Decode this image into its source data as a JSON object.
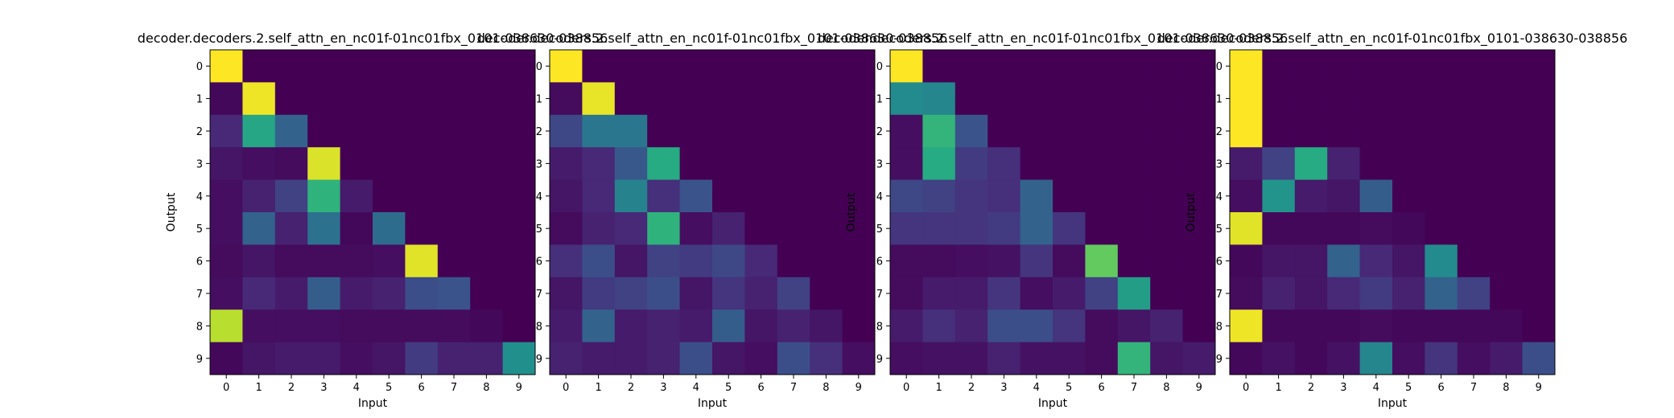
{
  "chart_data": [
    {
      "type": "heatmap",
      "title": "decoder.decoders.2.self_attn_en_nc01f-01nc01fbx_0101-038630-038856",
      "xlabel": "Input",
      "ylabel": "Output",
      "x_ticks": [
        "0",
        "1",
        "2",
        "3",
        "4",
        "5",
        "6",
        "7",
        "8",
        "9"
      ],
      "y_ticks": [
        "0",
        "1",
        "2",
        "3",
        "4",
        "5",
        "6",
        "7",
        "8",
        "9"
      ],
      "colormap": "viridis",
      "values": [
        [
          1.0,
          0.0,
          0.0,
          0.0,
          0.0,
          0.0,
          0.0,
          0.0,
          0.0,
          0.0
        ],
        [
          0.02,
          0.98,
          0.0,
          0.0,
          0.0,
          0.0,
          0.0,
          0.0,
          0.0,
          0.0
        ],
        [
          0.12,
          0.6,
          0.32,
          0.0,
          0.0,
          0.0,
          0.0,
          0.0,
          0.0,
          0.0
        ],
        [
          0.06,
          0.04,
          0.03,
          0.95,
          0.0,
          0.0,
          0.0,
          0.0,
          0.0,
          0.0
        ],
        [
          0.04,
          0.1,
          0.2,
          0.65,
          0.08,
          0.0,
          0.0,
          0.0,
          0.0,
          0.0
        ],
        [
          0.04,
          0.32,
          0.1,
          0.38,
          0.02,
          0.36,
          0.0,
          0.0,
          0.0,
          0.0
        ],
        [
          0.03,
          0.06,
          0.03,
          0.03,
          0.03,
          0.04,
          0.96,
          0.0,
          0.0,
          0.0
        ],
        [
          0.04,
          0.12,
          0.08,
          0.3,
          0.08,
          0.1,
          0.24,
          0.26,
          0.0,
          0.0
        ],
        [
          0.9,
          0.04,
          0.04,
          0.04,
          0.03,
          0.03,
          0.03,
          0.03,
          0.02,
          0.0
        ],
        [
          0.02,
          0.06,
          0.08,
          0.08,
          0.04,
          0.06,
          0.18,
          0.1,
          0.1,
          0.5
        ]
      ]
    },
    {
      "type": "heatmap",
      "title": "decoder.decoders.2.self_attn_en_nc01f-01nc01fbx_0101-038630-038856",
      "xlabel": "Input",
      "ylabel": "",
      "x_ticks": [
        "0",
        "1",
        "2",
        "3",
        "4",
        "5",
        "6",
        "7",
        "8",
        "9"
      ],
      "y_ticks": [
        "0",
        "1",
        "2",
        "3",
        "4",
        "5",
        "6",
        "7",
        "8",
        "9"
      ],
      "colormap": "viridis",
      "values": [
        [
          1.0,
          0.0,
          0.0,
          0.0,
          0.0,
          0.0,
          0.0,
          0.0,
          0.0,
          0.0
        ],
        [
          0.03,
          0.97,
          0.0,
          0.0,
          0.0,
          0.0,
          0.0,
          0.0,
          0.0,
          0.0
        ],
        [
          0.22,
          0.4,
          0.4,
          0.0,
          0.0,
          0.0,
          0.0,
          0.0,
          0.0,
          0.0
        ],
        [
          0.08,
          0.12,
          0.28,
          0.62,
          0.0,
          0.0,
          0.0,
          0.0,
          0.0,
          0.0
        ],
        [
          0.06,
          0.12,
          0.45,
          0.14,
          0.26,
          0.0,
          0.0,
          0.0,
          0.0,
          0.0
        ],
        [
          0.03,
          0.1,
          0.12,
          0.65,
          0.04,
          0.1,
          0.0,
          0.0,
          0.0,
          0.0
        ],
        [
          0.14,
          0.24,
          0.06,
          0.2,
          0.18,
          0.22,
          0.12,
          0.0,
          0.0,
          0.0
        ],
        [
          0.06,
          0.18,
          0.2,
          0.24,
          0.06,
          0.16,
          0.1,
          0.2,
          0.0,
          0.0
        ],
        [
          0.08,
          0.32,
          0.08,
          0.1,
          0.08,
          0.3,
          0.06,
          0.1,
          0.06,
          0.0
        ],
        [
          0.1,
          0.08,
          0.08,
          0.1,
          0.24,
          0.06,
          0.04,
          0.24,
          0.14,
          0.04
        ]
      ]
    },
    {
      "type": "heatmap",
      "title": "decoder.decoders.2.self_attn_en_nc01f-01nc01fbx_0101-038630-038856",
      "xlabel": "Input",
      "ylabel": "Output",
      "x_ticks": [
        "0",
        "1",
        "2",
        "3",
        "4",
        "5",
        "6",
        "7",
        "8",
        "9"
      ],
      "y_ticks": [
        "0",
        "1",
        "2",
        "3",
        "4",
        "5",
        "6",
        "7",
        "8",
        "9"
      ],
      "colormap": "viridis",
      "values": [
        [
          1.0,
          0.0,
          0.0,
          0.0,
          0.0,
          0.0,
          0.0,
          0.0,
          0.0,
          0.0
        ],
        [
          0.48,
          0.46,
          0.0,
          0.0,
          0.0,
          0.0,
          0.0,
          0.0,
          0.0,
          0.0
        ],
        [
          0.04,
          0.66,
          0.26,
          0.0,
          0.0,
          0.0,
          0.0,
          0.0,
          0.0,
          0.0
        ],
        [
          0.04,
          0.62,
          0.18,
          0.14,
          0.0,
          0.0,
          0.0,
          0.0,
          0.0,
          0.0
        ],
        [
          0.22,
          0.2,
          0.16,
          0.14,
          0.32,
          0.0,
          0.0,
          0.0,
          0.0,
          0.0
        ],
        [
          0.16,
          0.16,
          0.16,
          0.18,
          0.32,
          0.16,
          0.0,
          0.0,
          0.0,
          0.0
        ],
        [
          0.03,
          0.03,
          0.04,
          0.05,
          0.16,
          0.03,
          0.76,
          0.0,
          0.0,
          0.0
        ],
        [
          0.03,
          0.08,
          0.08,
          0.16,
          0.04,
          0.08,
          0.2,
          0.56,
          0.0,
          0.0
        ],
        [
          0.08,
          0.14,
          0.1,
          0.24,
          0.24,
          0.16,
          0.03,
          0.06,
          0.1,
          0.0
        ],
        [
          0.04,
          0.05,
          0.05,
          0.1,
          0.05,
          0.05,
          0.03,
          0.66,
          0.06,
          0.08
        ]
      ]
    },
    {
      "type": "heatmap",
      "title": "decoder.decoders.2.self_attn_en_nc01f-01nc01fbx_0101-038630-038856",
      "xlabel": "Input",
      "ylabel": "Output",
      "x_ticks": [
        "0",
        "1",
        "2",
        "3",
        "4",
        "5",
        "6",
        "7",
        "8",
        "9"
      ],
      "y_ticks": [
        "0",
        "1",
        "2",
        "3",
        "4",
        "5",
        "6",
        "7",
        "8",
        "9"
      ],
      "colormap": "viridis",
      "values": [
        [
          1.0,
          0.0,
          0.0,
          0.0,
          0.0,
          0.0,
          0.0,
          0.0,
          0.0,
          0.0
        ],
        [
          1.0,
          0.0,
          0.0,
          0.0,
          0.0,
          0.0,
          0.0,
          0.0,
          0.0,
          0.0
        ],
        [
          1.0,
          0.0,
          0.0,
          0.0,
          0.0,
          0.0,
          0.0,
          0.0,
          0.0,
          0.0
        ],
        [
          0.08,
          0.2,
          0.62,
          0.1,
          0.0,
          0.0,
          0.0,
          0.0,
          0.0,
          0.0
        ],
        [
          0.04,
          0.52,
          0.08,
          0.06,
          0.3,
          0.0,
          0.0,
          0.0,
          0.0,
          0.0
        ],
        [
          0.96,
          0.02,
          0.02,
          0.02,
          0.03,
          0.02,
          0.0,
          0.0,
          0.0,
          0.0
        ],
        [
          0.02,
          0.06,
          0.06,
          0.32,
          0.12,
          0.06,
          0.48,
          0.0,
          0.0,
          0.0
        ],
        [
          0.03,
          0.1,
          0.06,
          0.12,
          0.18,
          0.1,
          0.32,
          0.2,
          0.0,
          0.0
        ],
        [
          0.98,
          0.02,
          0.02,
          0.02,
          0.03,
          0.02,
          0.02,
          0.02,
          0.02,
          0.0
        ],
        [
          0.02,
          0.05,
          0.02,
          0.05,
          0.46,
          0.04,
          0.16,
          0.04,
          0.08,
          0.24
        ]
      ]
    }
  ]
}
